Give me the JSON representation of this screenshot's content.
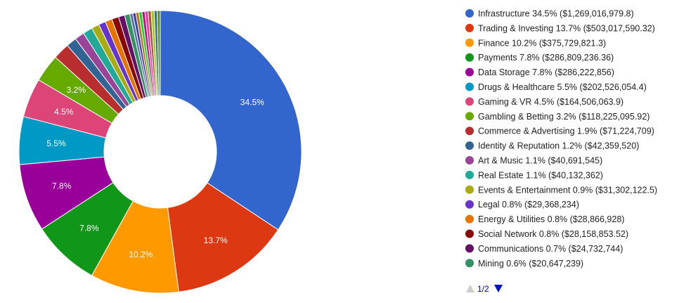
{
  "chart_data": {
    "type": "pie",
    "donut": true,
    "legend_position": "right",
    "slices": [
      {
        "name": "Infrastructure",
        "percent_label": "34.5%",
        "value_label": "$1,269,016,979.8",
        "value": 1269016979.8,
        "color": "#3366cc"
      },
      {
        "name": "Trading & Investing",
        "percent_label": "13.7%",
        "value_label": "$503,017,590.32",
        "value": 503017590.32,
        "color": "#dc3912"
      },
      {
        "name": "Finance",
        "percent_label": "10.2%",
        "value_label": "$375,729,821.3",
        "value": 375729821.3,
        "color": "#ff9900"
      },
      {
        "name": "Payments",
        "percent_label": "7.8%",
        "value_label": "$286,809,236.36",
        "value": 286809236.36,
        "color": "#109618"
      },
      {
        "name": "Data Storage",
        "percent_label": "7.8%",
        "value_label": "$286,222,856",
        "value": 286222856,
        "color": "#990099"
      },
      {
        "name": "Drugs & Healthcare",
        "percent_label": "5.5%",
        "value_label": "$202,526,054.4",
        "value": 202526054.4,
        "color": "#0099c6"
      },
      {
        "name": "Gaming & VR",
        "percent_label": "4.5%",
        "value_label": "$164,506,063.9",
        "value": 164506063.9,
        "color": "#dd4477"
      },
      {
        "name": "Gambling & Betting",
        "percent_label": "3.2%",
        "value_label": "$118,225,095.92",
        "value": 118225095.92,
        "color": "#66aa00"
      },
      {
        "name": "Commerce & Advertising",
        "percent_label": "1.9%",
        "value_label": "$71,224,709",
        "value": 71224709,
        "color": "#b82e2e"
      },
      {
        "name": "Identity & Reputation",
        "percent_label": "1.2%",
        "value_label": "$42,359,520",
        "value": 42359520,
        "color": "#316395"
      },
      {
        "name": "Art & Music",
        "percent_label": "1.1%",
        "value_label": "$40,691,545",
        "value": 40691545,
        "color": "#994499"
      },
      {
        "name": "Real Estate",
        "percent_label": "1.1%",
        "value_label": "$40,132,362",
        "value": 40132362,
        "color": "#22aa99"
      },
      {
        "name": "Events & Entertainment",
        "percent_label": "0.9%",
        "value_label": "$31,302,122.5",
        "value": 31302122.5,
        "color": "#aaaa11"
      },
      {
        "name": "Legal",
        "percent_label": "0.8%",
        "value_label": "$29,368,234",
        "value": 29368234,
        "color": "#6633cc"
      },
      {
        "name": "Energy & Utilities",
        "percent_label": "0.8%",
        "value_label": "$28,866,928",
        "value": 28866928,
        "color": "#e67300"
      },
      {
        "name": "Social Network",
        "percent_label": "0.8%",
        "value_label": "$28,158,853.52",
        "value": 28158853.52,
        "color": "#8b0707"
      },
      {
        "name": "Communications",
        "percent_label": "0.7%",
        "value_label": "$24,732,744",
        "value": 24732744,
        "color": "#651067"
      },
      {
        "name": "Mining",
        "percent_label": "0.6%",
        "value_label": "$20,647,239",
        "value": 20647239,
        "color": "#329262"
      }
    ],
    "remaining_small_slice_colors": [
      "#5574a6",
      "#3b3eac",
      "#b77322",
      "#16d620",
      "#b91383",
      "#f4359e",
      "#9c5935",
      "#a9c413",
      "#2a778d",
      "#668d1c"
    ],
    "remaining_small_slices_total_percent": 3.5,
    "pager": {
      "label": "1/2"
    }
  }
}
